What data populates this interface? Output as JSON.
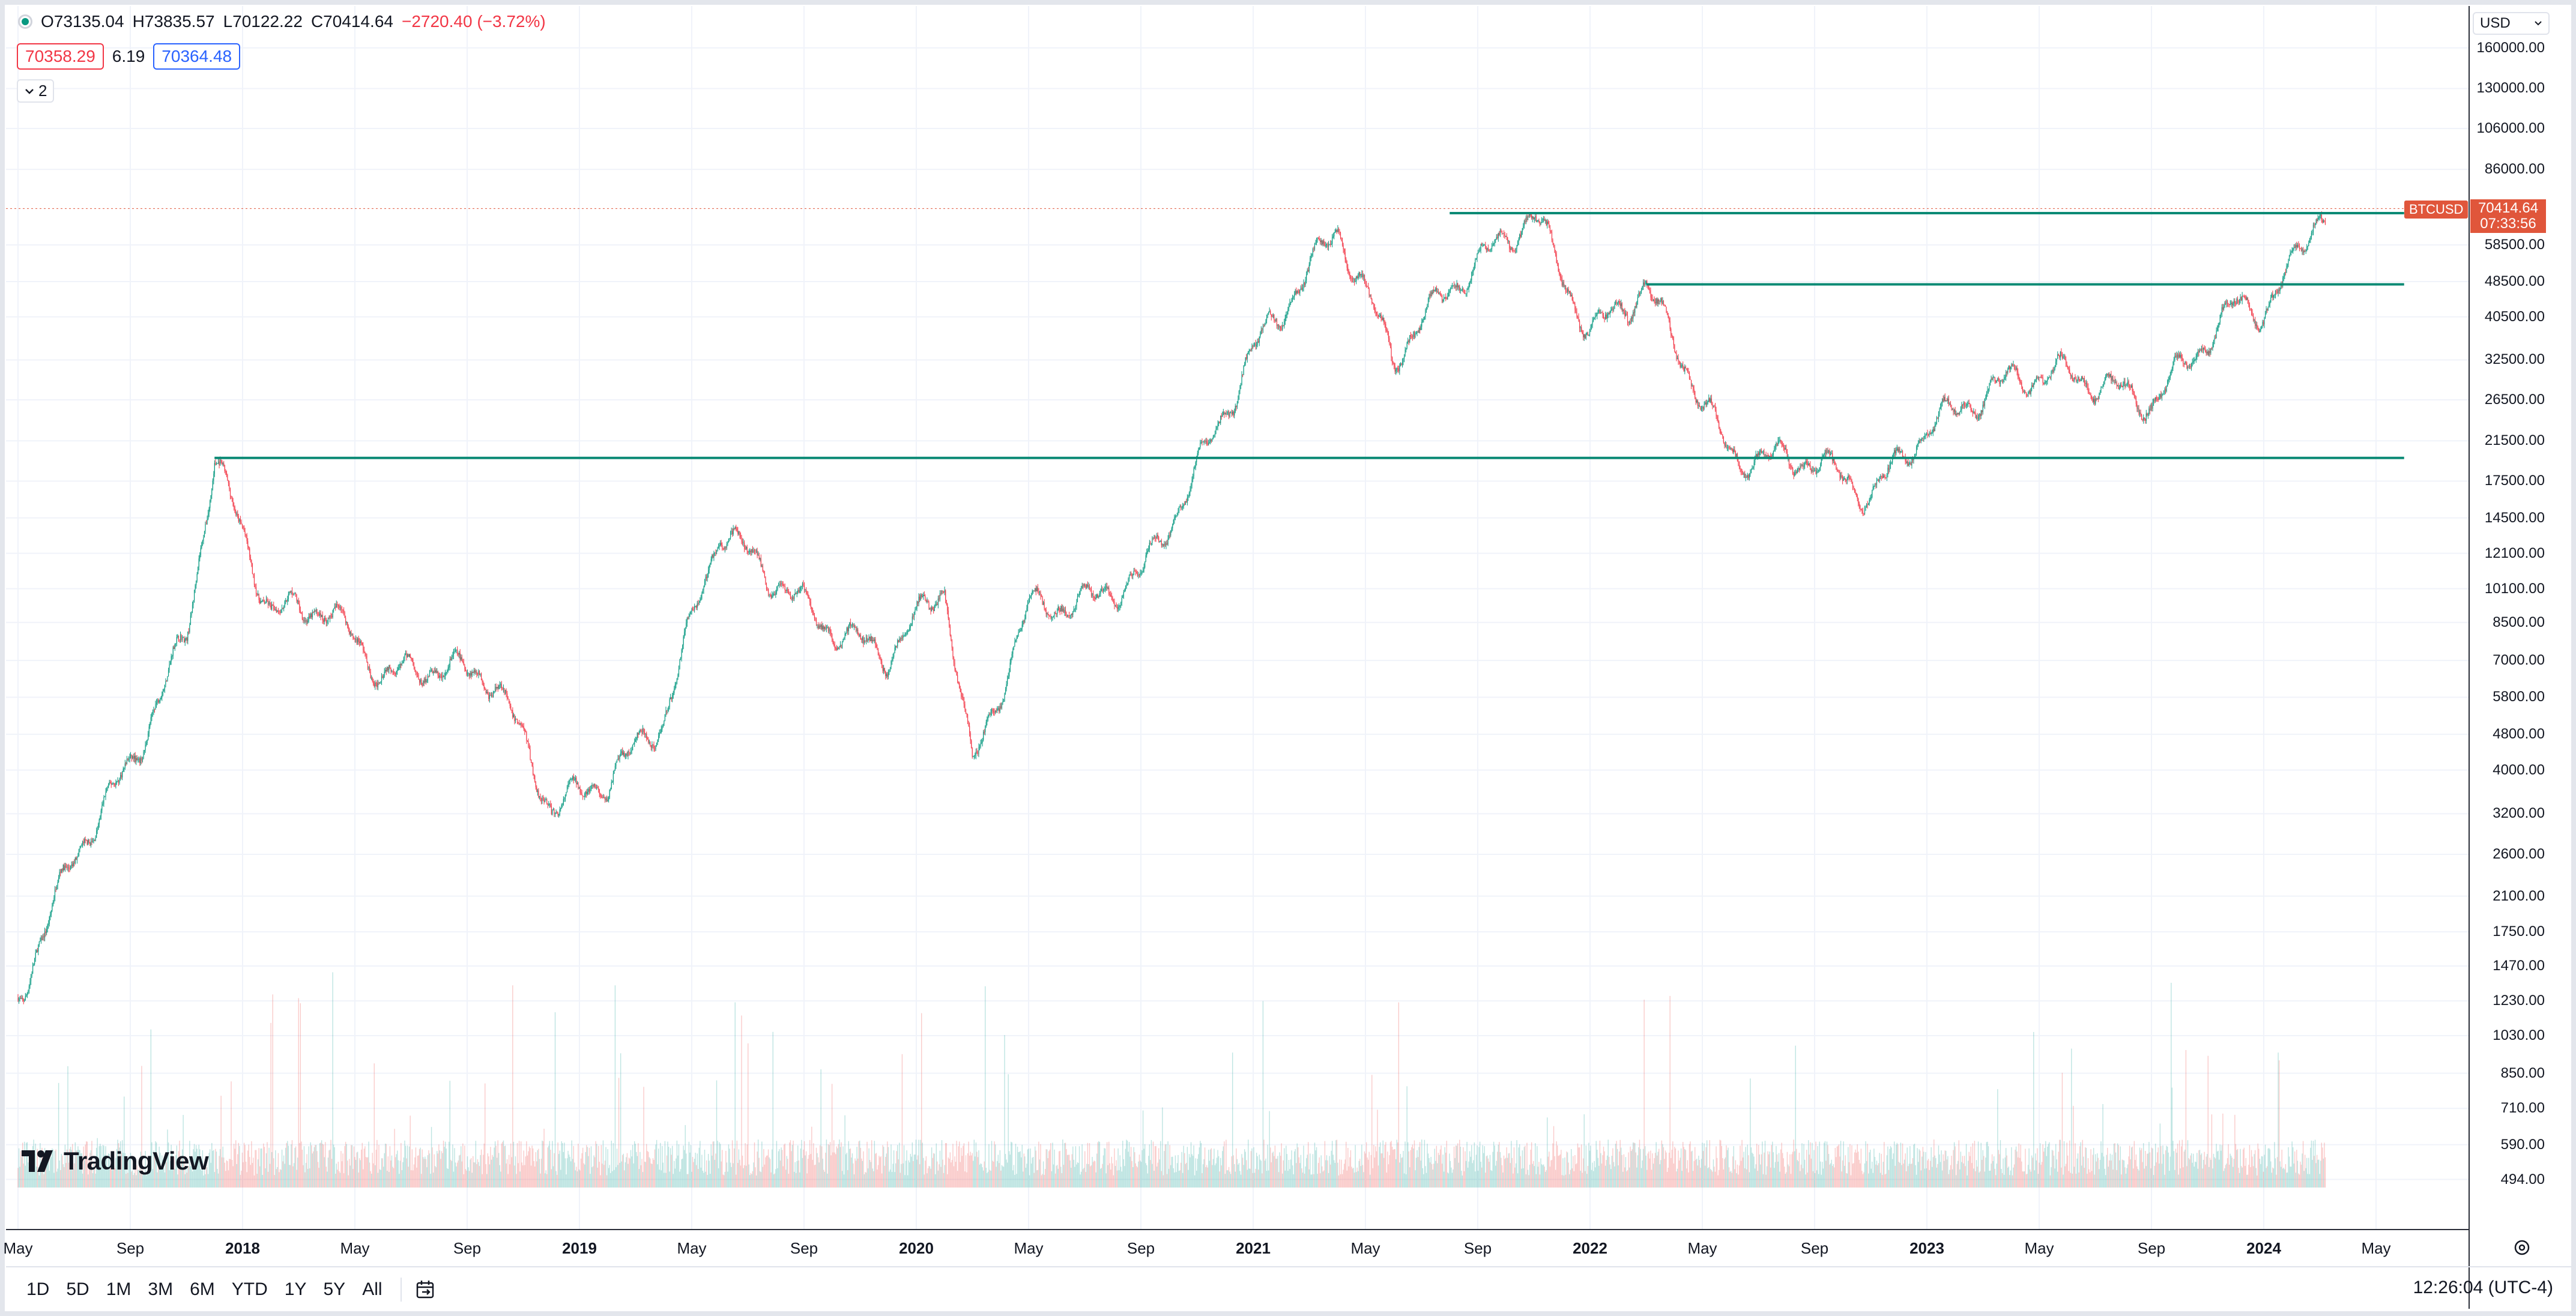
{
  "legend": {
    "open": "O73135.04",
    "high": "H73835.57",
    "low": "L70122.22",
    "close": "C70414.64",
    "change": "−2720.40 (−3.72%)",
    "status_icon": "market-dot-icon"
  },
  "quote": {
    "bid": "70358.29",
    "spread": "6.19",
    "ask": "70364.48"
  },
  "indicators_toggle": {
    "icon": "chevron-down-icon",
    "count": "2"
  },
  "currency": {
    "value": "USD",
    "icon": "chevron-down-icon"
  },
  "symbol_tag": "BTCUSD",
  "last_price": {
    "price": "70414.64",
    "countdown": "07:33:56"
  },
  "y_axis": {
    "scale": "log",
    "ticks": [
      "160000.00",
      "130000.00",
      "106000.00",
      "86000.00",
      "58500.00",
      "48500.00",
      "40500.00",
      "32500.00",
      "26500.00",
      "21500.00",
      "17500.00",
      "14500.00",
      "12100.00",
      "10100.00",
      "8500.00",
      "7000.00",
      "5800.00",
      "4800.00",
      "4000.00",
      "3200.00",
      "2600.00",
      "2100.00",
      "1750.00",
      "1470.00",
      "1230.00",
      "1030.00",
      "850.00",
      "710.00",
      "590.00",
      "494.00"
    ]
  },
  "x_axis": {
    "ticks": [
      {
        "label": "May",
        "year": false
      },
      {
        "label": "Sep",
        "year": false
      },
      {
        "label": "2018",
        "year": true
      },
      {
        "label": "May",
        "year": false
      },
      {
        "label": "Sep",
        "year": false
      },
      {
        "label": "2019",
        "year": true
      },
      {
        "label": "May",
        "year": false
      },
      {
        "label": "Sep",
        "year": false
      },
      {
        "label": "2020",
        "year": true
      },
      {
        "label": "May",
        "year": false
      },
      {
        "label": "Sep",
        "year": false
      },
      {
        "label": "2021",
        "year": true
      },
      {
        "label": "May",
        "year": false
      },
      {
        "label": "Sep",
        "year": false
      },
      {
        "label": "2022",
        "year": true
      },
      {
        "label": "May",
        "year": false
      },
      {
        "label": "Sep",
        "year": false
      },
      {
        "label": "2023",
        "year": true
      },
      {
        "label": "May",
        "year": false
      },
      {
        "label": "Sep",
        "year": false
      },
      {
        "label": "2024",
        "year": true
      },
      {
        "label": "May",
        "year": false
      }
    ]
  },
  "branding": {
    "logo_icon": "tradingview-logo-icon",
    "name": "TradingView"
  },
  "time_ranges": [
    "1D",
    "5D",
    "1M",
    "3M",
    "6M",
    "YTD",
    "1Y",
    "5Y",
    "All"
  ],
  "goto_date_icon": "calendar-goto-icon",
  "clock": "12:26:04 (UTC-4)",
  "settings_icon": "gear-icon",
  "colors": {
    "up": "#089981",
    "down": "#f23645",
    "line": "#0b8a75",
    "last_price": "#e0563b"
  },
  "chart_data": {
    "type": "candlestick",
    "symbol": "BTCUSD",
    "y_scale": "log",
    "ylim": [
      494,
      160000
    ],
    "xlim": [
      "2017-05",
      "2024-06"
    ],
    "horizontal_lines": [
      {
        "price": 19700,
        "from": "2017-12",
        "to": "2024-06"
      },
      {
        "price": 47800,
        "from": "2022-03",
        "to": "2024-06"
      },
      {
        "price": 68800,
        "from": "2021-08",
        "to": "2024-06"
      }
    ],
    "price_path": [
      [
        "2017-05",
        1250
      ],
      [
        "2017-07",
        2600
      ],
      [
        "2017-09",
        4100
      ],
      [
        "2017-11",
        8000
      ],
      [
        "2017-12",
        19700
      ],
      [
        "2018-02",
        9000
      ],
      [
        "2018-04",
        9200
      ],
      [
        "2018-06",
        6500
      ],
      [
        "2018-08",
        6800
      ],
      [
        "2018-10",
        6400
      ],
      [
        "2018-12",
        3300
      ],
      [
        "2019-02",
        3800
      ],
      [
        "2019-04",
        5200
      ],
      [
        "2019-06",
        13800
      ],
      [
        "2019-08",
        10500
      ],
      [
        "2019-10",
        8200
      ],
      [
        "2019-12",
        7200
      ],
      [
        "2020-02",
        10300
      ],
      [
        "2020-03",
        4000
      ],
      [
        "2020-05",
        9200
      ],
      [
        "2020-07",
        9400
      ],
      [
        "2020-09",
        10800
      ],
      [
        "2020-11",
        18500
      ],
      [
        "2021-01",
        34000
      ],
      [
        "2021-04",
        63500
      ],
      [
        "2021-06",
        33000
      ],
      [
        "2021-08",
        47000
      ],
      [
        "2021-11",
        68800
      ],
      [
        "2022-01",
        37000
      ],
      [
        "2022-03",
        47500
      ],
      [
        "2022-06",
        19800
      ],
      [
        "2022-09",
        19500
      ],
      [
        "2022-11",
        16200
      ],
      [
        "2023-01",
        23000
      ],
      [
        "2023-04",
        29500
      ],
      [
        "2023-06",
        30500
      ],
      [
        "2023-09",
        26000
      ],
      [
        "2023-12",
        43000
      ],
      [
        "2024-01",
        42000
      ],
      [
        "2024-02",
        52000
      ],
      [
        "2024-03",
        70414.64
      ]
    ],
    "volume_note": "volume histogram in lower band, no axis"
  }
}
